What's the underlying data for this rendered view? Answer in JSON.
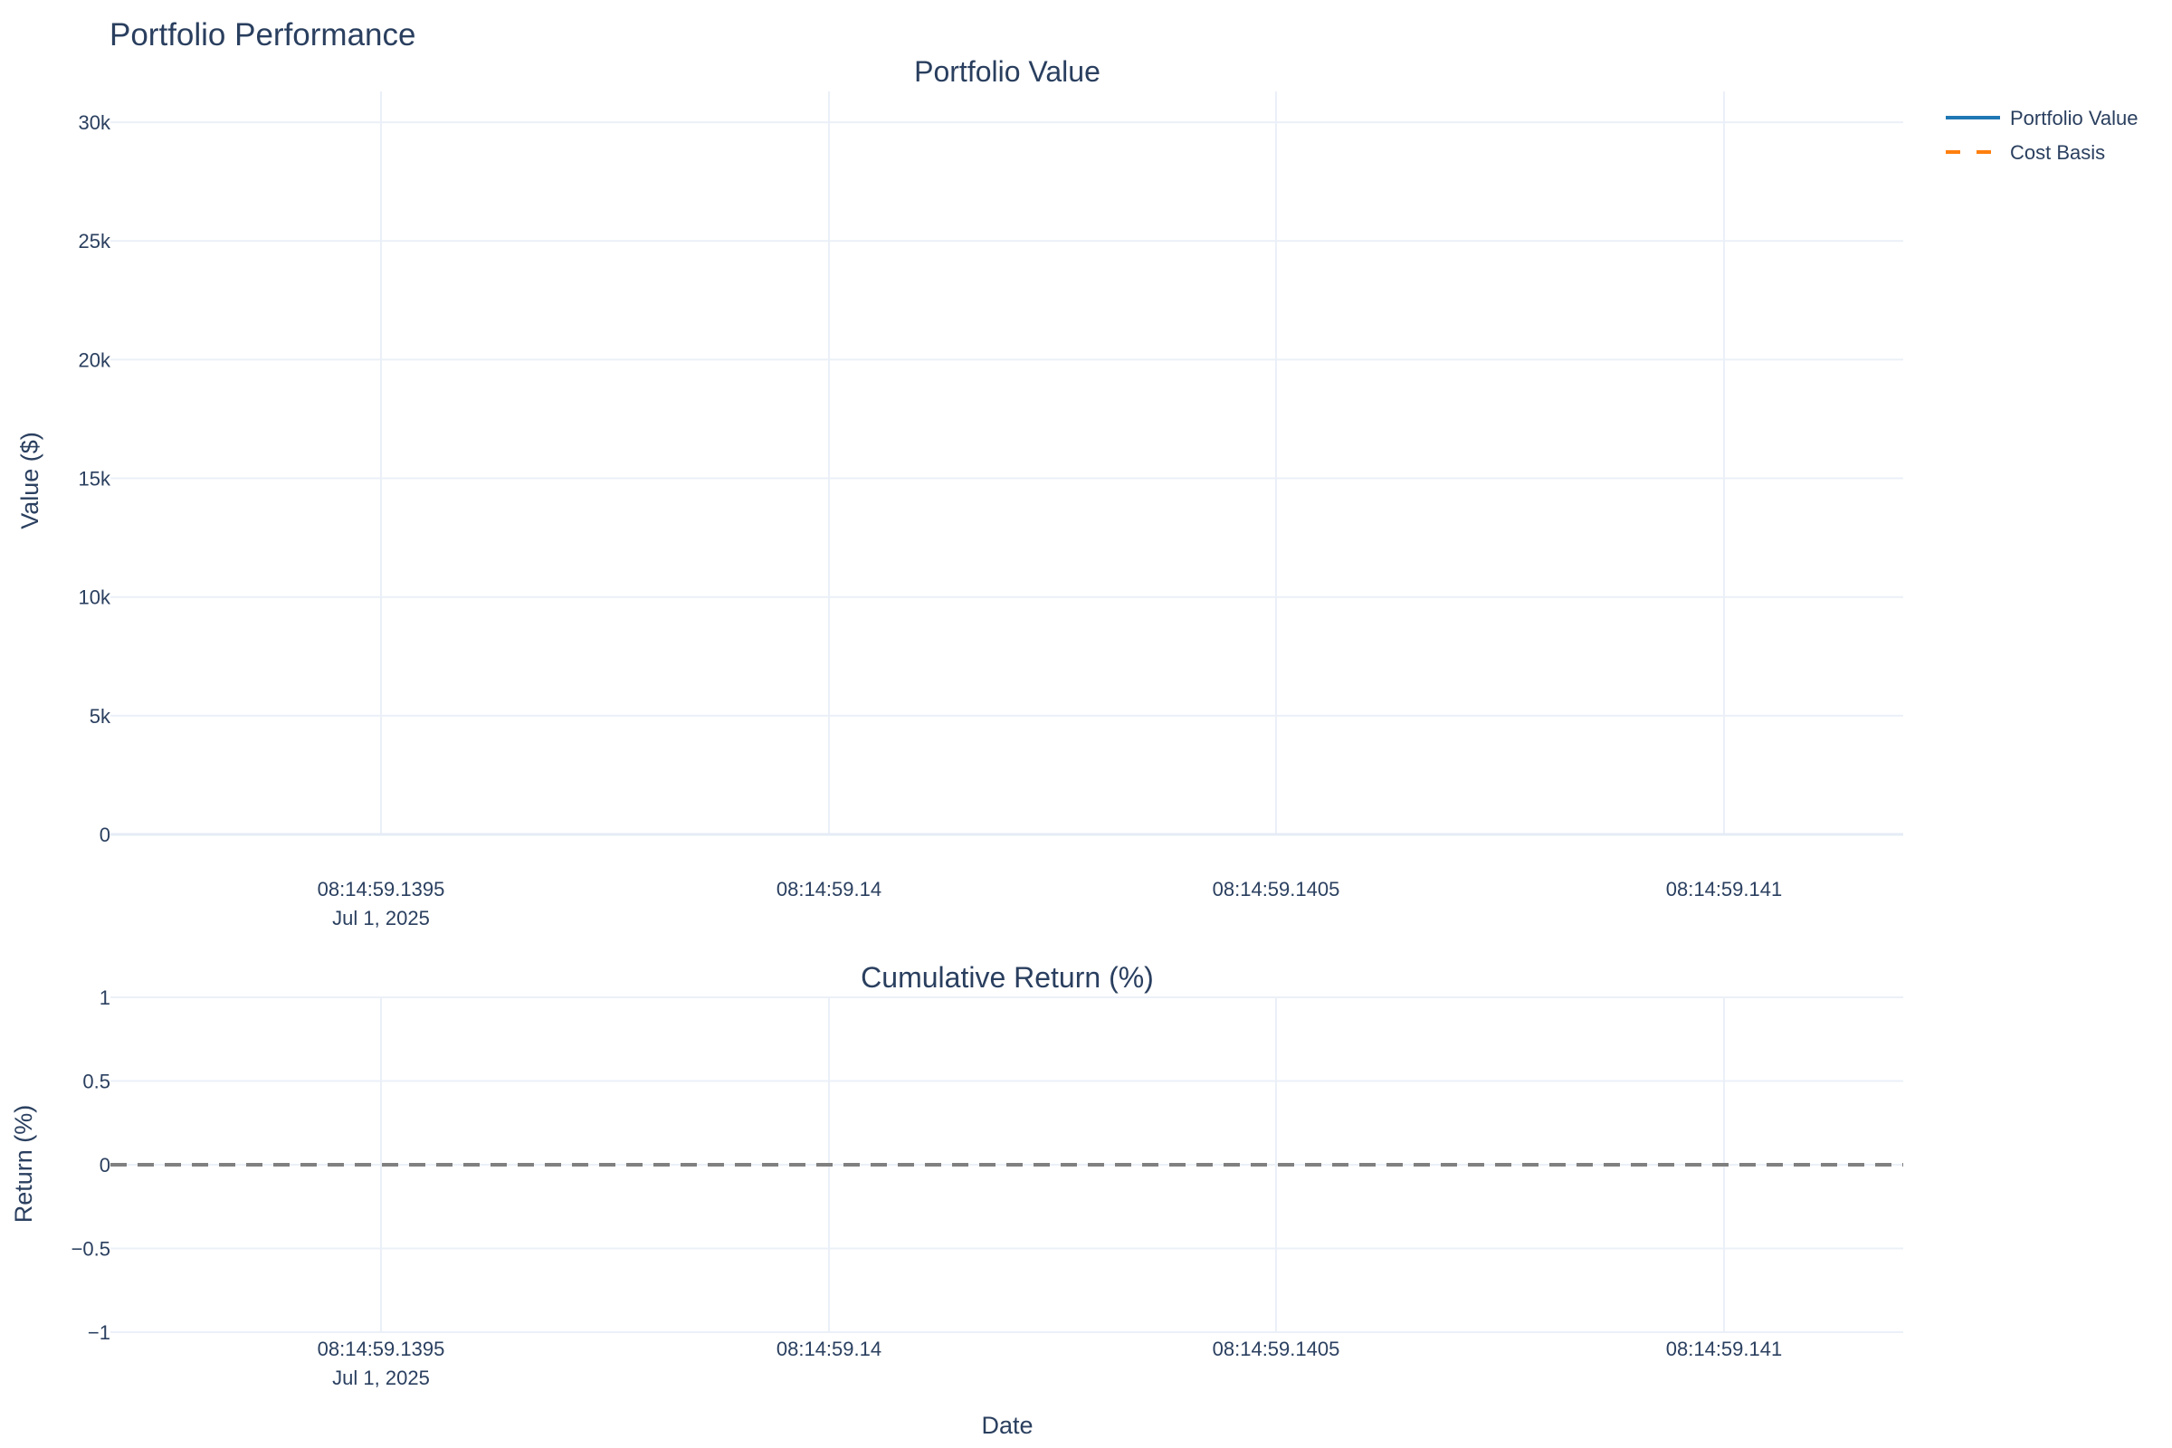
{
  "title": "Portfolio Performance",
  "chart_data": [
    {
      "type": "line",
      "title": "Portfolio Value",
      "xlabel": "",
      "ylabel": "Value ($)",
      "x_ticks": [
        {
          "value": "08:14:59.1395",
          "label": "08:14:59.1395",
          "sublabel": "Jul 1, 2025"
        },
        {
          "value": "08:14:59.14",
          "label": "08:14:59.14",
          "sublabel": ""
        },
        {
          "value": "08:14:59.1405",
          "label": "08:14:59.1405",
          "sublabel": ""
        },
        {
          "value": "08:14:59.141",
          "label": "08:14:59.141",
          "sublabel": ""
        }
      ],
      "y_ticks": [
        {
          "value": 0,
          "label": "0"
        },
        {
          "value": 5000,
          "label": "5k"
        },
        {
          "value": 10000,
          "label": "10k"
        },
        {
          "value": 15000,
          "label": "15k"
        },
        {
          "value": 20000,
          "label": "20k"
        },
        {
          "value": 25000,
          "label": "25k"
        },
        {
          "value": 30000,
          "label": "30k"
        }
      ],
      "ylim": [
        0,
        31300
      ],
      "grid": true,
      "legend_position": "top-right",
      "series": [
        {
          "name": "Portfolio Value",
          "color": "#1f77b4",
          "dash": "solid",
          "x": [],
          "y": []
        },
        {
          "name": "Cost Basis",
          "color": "#ff7f0e",
          "dash": "dash",
          "x": [],
          "y": []
        }
      ]
    },
    {
      "type": "line",
      "title": "Cumulative Return (%)",
      "xlabel": "Date",
      "ylabel": "Return (%)",
      "x_ticks": [
        {
          "value": "08:14:59.1395",
          "label": "08:14:59.1395",
          "sublabel": "Jul 1, 2025"
        },
        {
          "value": "08:14:59.14",
          "label": "08:14:59.14",
          "sublabel": ""
        },
        {
          "value": "08:14:59.1405",
          "label": "08:14:59.1405",
          "sublabel": ""
        },
        {
          "value": "08:14:59.141",
          "label": "08:14:59.141",
          "sublabel": ""
        }
      ],
      "y_ticks": [
        {
          "value": -1,
          "label": "−1"
        },
        {
          "value": -0.5,
          "label": "−0.5"
        },
        {
          "value": 0,
          "label": "0"
        },
        {
          "value": 0.5,
          "label": "0.5"
        },
        {
          "value": 1,
          "label": "1"
        }
      ],
      "ylim": [
        -1,
        1
      ],
      "grid": true,
      "reference_line": {
        "y": 0,
        "color": "#808080",
        "dash": "dash"
      },
      "series": []
    }
  ]
}
